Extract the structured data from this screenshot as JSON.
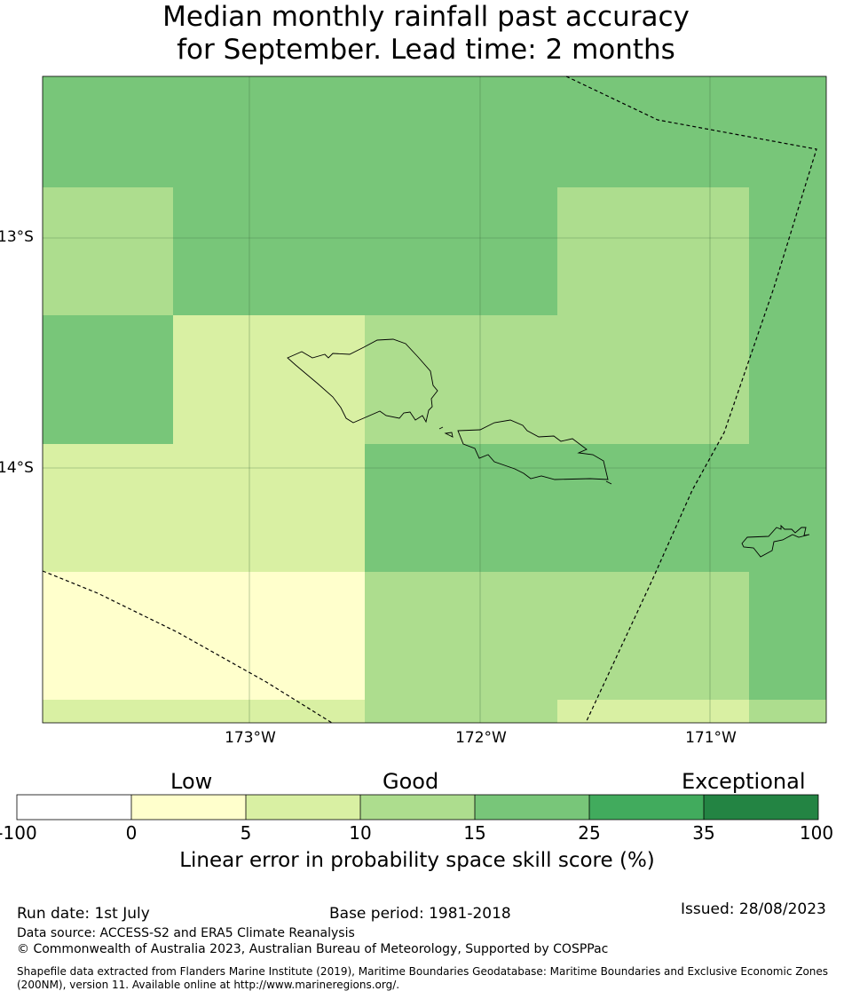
{
  "title": {
    "line1": "Median monthly rainfall past accuracy",
    "line2": "for September. Lead time: 2 months"
  },
  "map": {
    "lat_labels": [
      "13°S",
      "14°S"
    ],
    "lon_labels": [
      "173°W",
      "172°W",
      "171°W"
    ],
    "grid_colors": {
      "band_0_5": "#ffffcc",
      "band_5_10": "#d9f0a3",
      "band_10_15": "#addd8e",
      "band_15_25": "#78c679"
    }
  },
  "colorbar": {
    "category_labels": [
      "Low",
      "Good",
      "Exceptional"
    ],
    "tick_labels": [
      "-100",
      "0",
      "5",
      "10",
      "15",
      "25",
      "35",
      "100"
    ],
    "colors": [
      "#ffffff",
      "#ffffcc",
      "#d9f0a3",
      "#addd8e",
      "#78c679",
      "#41ab5d",
      "#238443"
    ],
    "title": "Linear error in probability space skill score (%)"
  },
  "footer": {
    "run_date": "Run date: 1st July",
    "base_period": "Base period: 1981-2018",
    "issued": "Issued: 28/08/2023",
    "data_source": "Data source: ACCESS-S2 and ERA5 Climate Reanalysis",
    "copyright": "© Commonwealth of Australia 2023, Australian Bureau of Meteorology, Supported by COSPPac",
    "shapefile": "Shapefile data extracted from Flanders Marine Institute (2019), Maritime Boundaries Geodatabase: Maritime Boundaries and Exclusive Economic Zones (200NM), version 11. Available online at http://www.marineregions.org/."
  }
}
